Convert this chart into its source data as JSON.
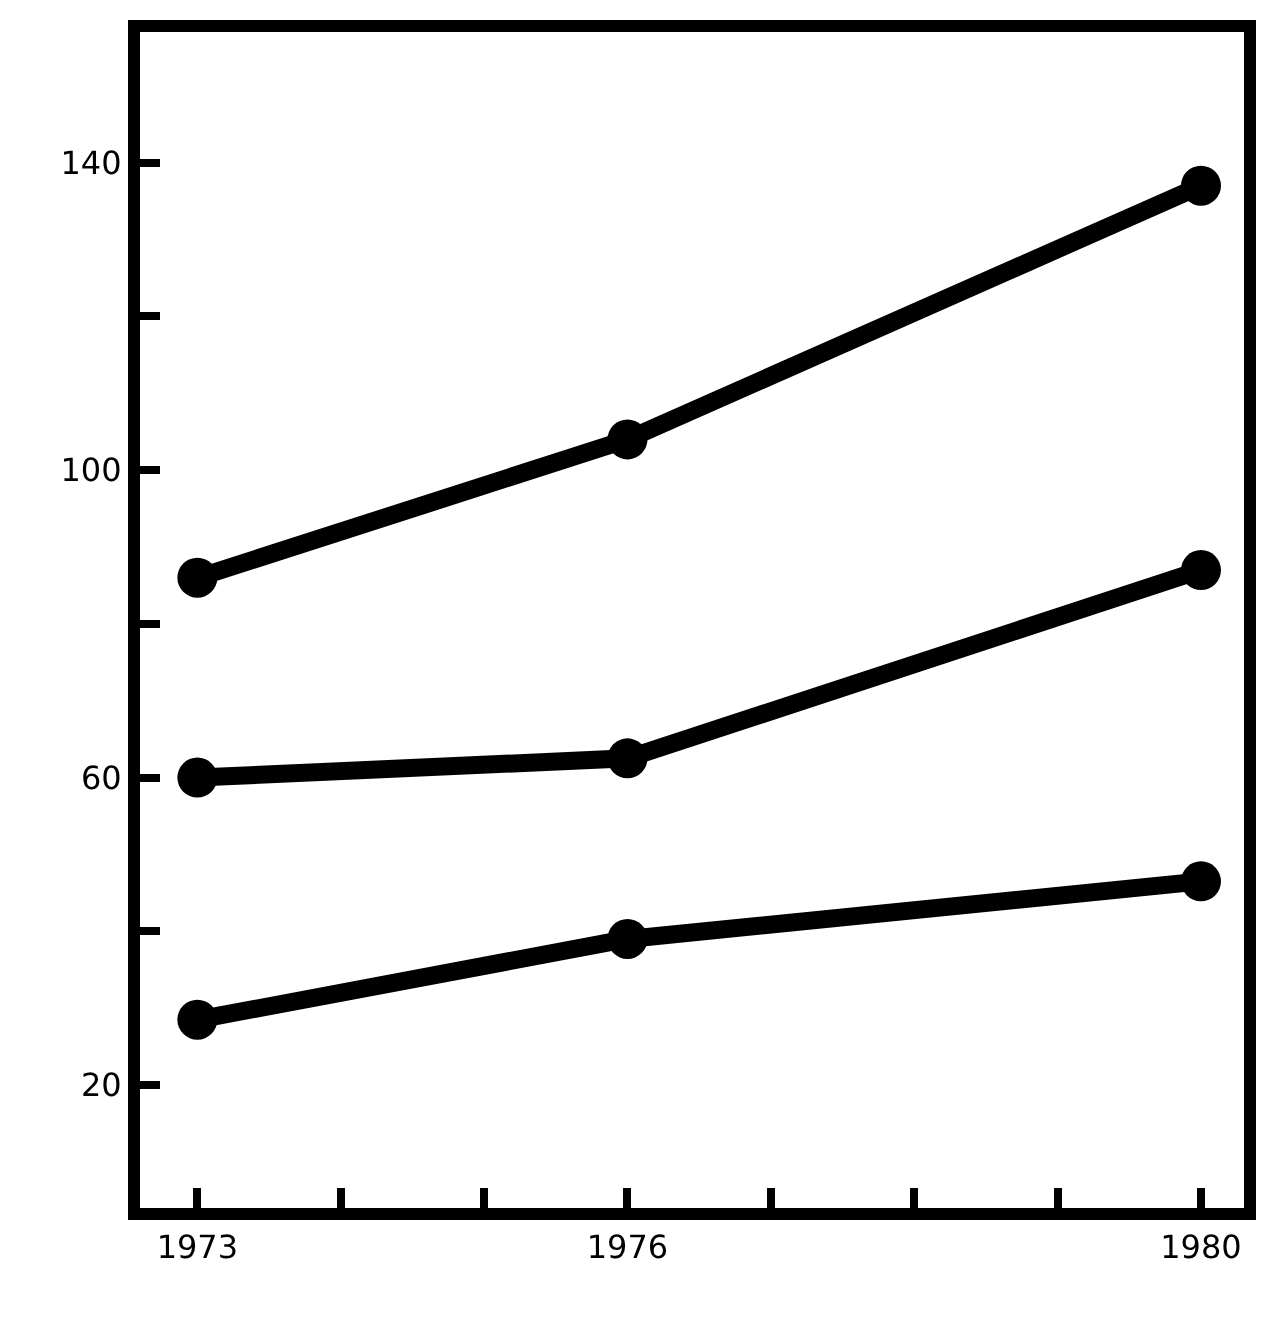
{
  "chart_data": {
    "type": "line",
    "x": [
      1973,
      1976,
      1980
    ],
    "series": [
      {
        "color": "#000000",
        "values": [
          86,
          104,
          137
        ]
      },
      {
        "color": "#000000",
        "values": [
          60,
          62.5,
          87
        ]
      },
      {
        "color": "#000000",
        "values": [
          28.5,
          39,
          46.5
        ]
      }
    ],
    "xlim": [
      1972.6,
      1980.3
    ],
    "xticks": [
      1973,
      {
        "value": 1974,
        "label": null
      },
      {
        "value": 1975,
        "label": null
      },
      1976,
      {
        "value": 1977,
        "label": null
      },
      {
        "value": 1978,
        "label": null
      },
      {
        "value": 1979,
        "label": null
      },
      1980
    ],
    "ylim": [
      4,
      157
    ],
    "yticks": [
      20,
      {
        "value": 40,
        "label": null
      },
      60,
      {
        "value": 80,
        "label": null
      },
      100,
      {
        "value": 120,
        "label": null
      },
      140
    ],
    "marker": "circle",
    "line_style": "solid"
  }
}
